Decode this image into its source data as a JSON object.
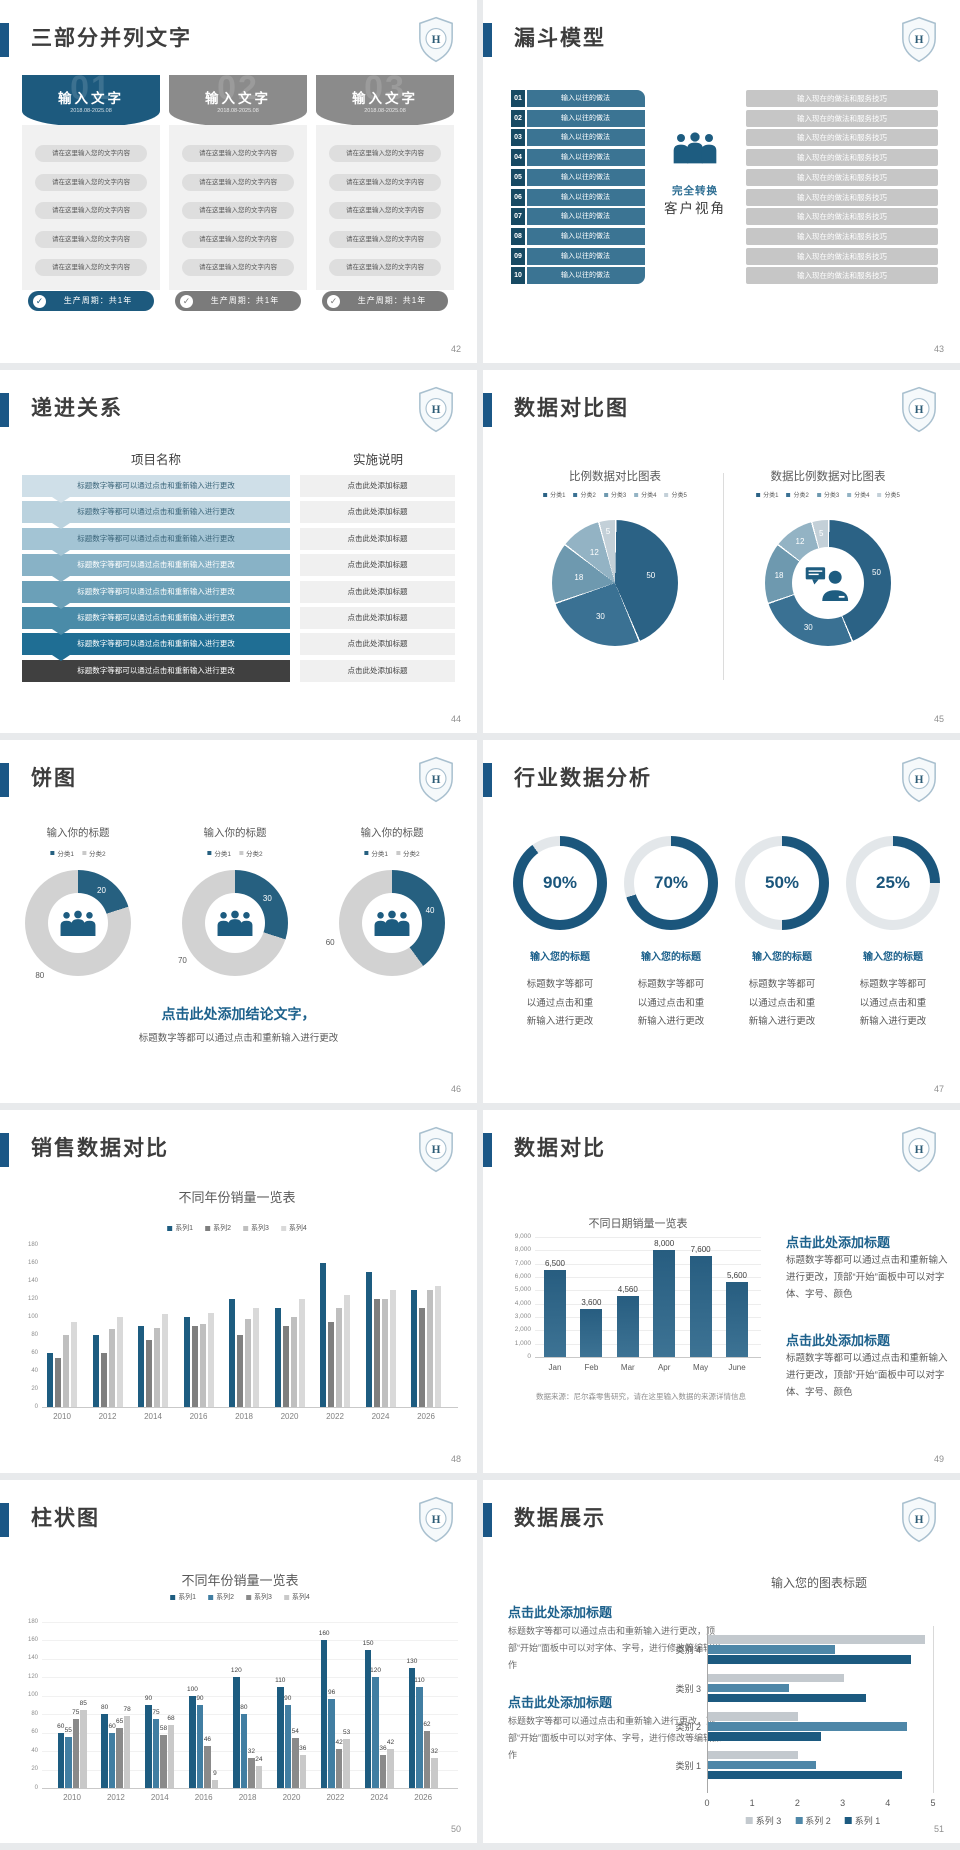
{
  "page_bg": "#e8eaec",
  "logo_letter": "H",
  "slides": [
    {
      "key": "three-part",
      "title": "三部分并列文字",
      "page": "42",
      "columns": [
        {
          "num": "01",
          "header": "输入文字",
          "date": "2018.08-2025.08",
          "accent": "#1d5a7e",
          "footer_bg": "#1d5a7e",
          "items": [
            "请在这里输入您的文字内容",
            "请在这里输入您的文字内容",
            "请在这里输入您的文字内容",
            "请在这里输入您的文字内容",
            "请在这里输入您的文字内容"
          ],
          "footer": "生产周期：共1年"
        },
        {
          "num": "02",
          "header": "输入文字",
          "date": "2018.08-2025.08",
          "accent": "#8b8b8b",
          "footer_bg": "#7b7b7b",
          "items": [
            "请在这里输入您的文字内容",
            "请在这里输入您的文字内容",
            "请在这里输入您的文字内容",
            "请在这里输入您的文字内容",
            "请在这里输入您的文字内容"
          ],
          "footer": "生产周期：共1年"
        },
        {
          "num": "03",
          "header": "输入文字",
          "date": "2018.08-2025.08",
          "accent": "#8b8b8b",
          "footer_bg": "#7b7b7b",
          "items": [
            "请在这里输入您的文字内容",
            "请在这里输入您的文字内容",
            "请在这里输入您的文字内容",
            "请在这里输入您的文字内容",
            "请在这里输入您的文字内容"
          ],
          "footer": "生产周期：共1年"
        }
      ]
    },
    {
      "key": "funnel",
      "title": "漏斗模型",
      "page": "43",
      "numbers": [
        "01",
        "02",
        "03",
        "04",
        "05",
        "06",
        "07",
        "08",
        "09",
        "10"
      ],
      "left_label": "输入以往的做法",
      "right_label": "输入现在的做法和服务技巧",
      "center_top": "完全转换",
      "center_bottom": "客户视角",
      "colors": {
        "num_box": "#174a63",
        "left_bar": "#3b7493",
        "right_bar": "#c6c6c6",
        "icon": "#1d5c80"
      }
    },
    {
      "key": "progression",
      "title": "递进关系",
      "page": "44",
      "col_left_header": "项目名称",
      "col_right_header": "实施说明",
      "left_text": "标题数字等都可以通过点击和重新输入进行更改",
      "right_text": "点击此处添加标题",
      "row_colors": [
        "#cfdfe8",
        "#bad2de",
        "#a3c4d4",
        "#88b2c6",
        "#6ba0b8",
        "#4a8ba8",
        "#1f6e94",
        "#404040"
      ],
      "dark_text_rows": 3
    },
    {
      "key": "pie-compare",
      "title": "数据对比图",
      "page": "45",
      "chart_data": [
        {
          "type": "pie",
          "title": "比例数据对比图表",
          "legend": [
            "分类1",
            "分类2",
            "分类3",
            "分类4",
            "分类5"
          ],
          "values": [
            50,
            30,
            18,
            12,
            5
          ],
          "colors": [
            "#2b6285",
            "#3a7193",
            "#6e99af",
            "#93b3c4",
            "#c3d0d8"
          ]
        },
        {
          "type": "donut",
          "title": "数据比例数据对比图表",
          "legend": [
            "分类1",
            "分类2",
            "分类3",
            "分类4",
            "分类5"
          ],
          "values": [
            50,
            30,
            18,
            12,
            5
          ],
          "colors": [
            "#2b6285",
            "#3a7193",
            "#6e99af",
            "#93b3c4",
            "#c3d0d8"
          ],
          "center_icon": "person-speech-icon"
        }
      ]
    },
    {
      "key": "pies",
      "title": "饼图",
      "page": "46",
      "chart_data": [
        {
          "type": "donut",
          "title": "输入你的标题",
          "legend": [
            "分类1",
            "分类2"
          ],
          "values": [
            20,
            80
          ],
          "colors": [
            "#266080",
            "#d2d2d2"
          ]
        },
        {
          "type": "donut",
          "title": "输入你的标题",
          "legend": [
            "分类1",
            "分类2"
          ],
          "values": [
            30,
            70
          ],
          "colors": [
            "#266080",
            "#d2d2d2"
          ]
        },
        {
          "type": "donut",
          "title": "输入你的标题",
          "legend": [
            "分类1",
            "分类2"
          ],
          "values": [
            40,
            60
          ],
          "colors": [
            "#266080",
            "#d2d2d2"
          ]
        }
      ],
      "conclusion_title": "点击此处添加结论文字，",
      "conclusion_body": "标题数字等都可以通过点击和重新输入进行更改"
    },
    {
      "key": "gauges",
      "title": "行业数据分析",
      "page": "47",
      "gauges": [
        {
          "percent": 90,
          "label": "90%"
        },
        {
          "percent": 70,
          "label": "70%"
        },
        {
          "percent": 50,
          "label": "50%"
        },
        {
          "percent": 25,
          "label": "25%"
        }
      ],
      "gauge_caption": "输入您的标题",
      "gauge_body": [
        "标题数字等都可",
        "以通过点击和重",
        "新输入进行更改"
      ],
      "colors": {
        "arc": "#1b567c",
        "track": "#e3e7ea",
        "pct": "#1b567c"
      }
    },
    {
      "key": "sales",
      "title": "销售数据对比",
      "page": "48",
      "chart_data": {
        "type": "bar",
        "title": "不同年份销量一览表",
        "categories": [
          "2010",
          "2012",
          "2014",
          "2016",
          "2018",
          "2020",
          "2022",
          "2024",
          "2026"
        ],
        "series": [
          {
            "name": "系列1",
            "color": "#1d5c80",
            "values": [
              60,
              80,
              90,
              100,
              120,
              110,
              160,
              150,
              130
            ]
          },
          {
            "name": "系列2",
            "color": "#7f7f7f",
            "values": [
              55,
              60,
              75,
              90,
              80,
              90,
              95,
              120,
              110
            ]
          },
          {
            "name": "系列3",
            "color": "#bfbfbf",
            "values": [
              80,
              87,
              88,
              92,
              98,
              100,
              110,
              120,
              130
            ]
          },
          {
            "name": "系列4",
            "color": "#d9d9d9",
            "values": [
              95,
              100,
              103,
              105,
              110,
              120,
              125,
              130,
              135
            ]
          }
        ],
        "ylim": [
          0,
          180
        ],
        "ystep": 20,
        "show_labels": false,
        "grid": false,
        "legend_position": "top"
      }
    },
    {
      "key": "compare",
      "title": "数据对比",
      "page": "49",
      "chart_data": {
        "type": "bar",
        "title": "不同日期销量一览表",
        "categories": [
          "Jan",
          "Feb",
          "Mar",
          "Apr",
          "May",
          "June"
        ],
        "series": [
          {
            "name": "销量",
            "color": "#2a6285",
            "values": [
              6500,
              3600,
              4560,
              8000,
              7600,
              5600
            ]
          }
        ],
        "labels": [
          "6,500",
          "3,600",
          "4,560",
          "8,000",
          "7,600",
          "5,600"
        ],
        "ylim": [
          0,
          9000
        ],
        "ystep": 1000,
        "show_labels": true,
        "grid": true
      },
      "source": "数据来源：尼尔森零售研究，请在这里输入数据的来源详情信息",
      "blocks": [
        {
          "heading": "点击此处添加标题",
          "body": "标题数字等都可以通过点击和重新输入进行更改，顶部“开始”面板中可以对字体、字号、颜色"
        },
        {
          "heading": "点击此处添加标题",
          "body": "标题数字等都可以通过点击和重新输入进行更改，顶部“开始”面板中可以对字体、字号、颜色"
        }
      ]
    },
    {
      "key": "column",
      "title": "柱状图",
      "page": "50",
      "chart_data": {
        "type": "bar",
        "title": "不同年份销量一览表",
        "categories": [
          "2010",
          "2012",
          "2014",
          "2016",
          "2018",
          "2020",
          "2022",
          "2024",
          "2026"
        ],
        "series": [
          {
            "name": "系列1",
            "color": "#1d5c80",
            "values": [
              60,
              80,
              90,
              100,
              120,
              110,
              160,
              150,
              130
            ]
          },
          {
            "name": "系列2",
            "color": "#417ea2",
            "values": [
              55,
              60,
              75,
              90,
              80,
              90,
              96,
              120,
              110
            ]
          },
          {
            "name": "系列3",
            "color": "#8a8a8a",
            "values": [
              75,
              65,
              58,
              46,
              32,
              54,
              42,
              36,
              62
            ]
          },
          {
            "name": "系列4",
            "color": "#c9c9c9",
            "values": [
              85,
              78,
              68,
              9,
              24,
              36,
              53,
              42,
              32
            ]
          }
        ],
        "ylim": [
          0,
          180
        ],
        "ystep": 20,
        "show_labels": true,
        "grid": true,
        "legend_position": "top"
      }
    },
    {
      "key": "display",
      "title": "数据展示",
      "page": "51",
      "blocks": [
        {
          "heading": "点击此处添加标题",
          "body": "标题数字等都可以通过点击和重新输入进行更改，顶部“开始”面板中可以对字体、字号，进行修改等编辑操作"
        },
        {
          "heading": "点击此处添加标题",
          "body": "标题数字等都可以通过点击和重新输入进行更改，顶部“开始”面板中可以对字体、字号，进行修改等编辑操作"
        }
      ],
      "chart_data": {
        "type": "hbar",
        "title": "输入您的图表标题",
        "categories": [
          "类别 1",
          "类别 2",
          "类别 3",
          "类别 4"
        ],
        "series": [
          {
            "name": "系列 1",
            "color": "#1c5a80",
            "values": [
              4.3,
              2.5,
              3.5,
              4.5
            ]
          },
          {
            "name": "系列 2",
            "color": "#4e87a8",
            "values": [
              2.4,
              4.4,
              1.8,
              2.8
            ]
          },
          {
            "name": "系列 3",
            "color": "#c3c9ce",
            "values": [
              2.0,
              2.0,
              3.0,
              4.8
            ]
          }
        ],
        "xlim": [
          0,
          5
        ],
        "xstep": 1,
        "legend_order": [
          "系列 3",
          "系列 2",
          "系列 1"
        ],
        "ticks": [
          "0",
          "1",
          "2",
          "3",
          "4",
          "5"
        ]
      }
    }
  ]
}
